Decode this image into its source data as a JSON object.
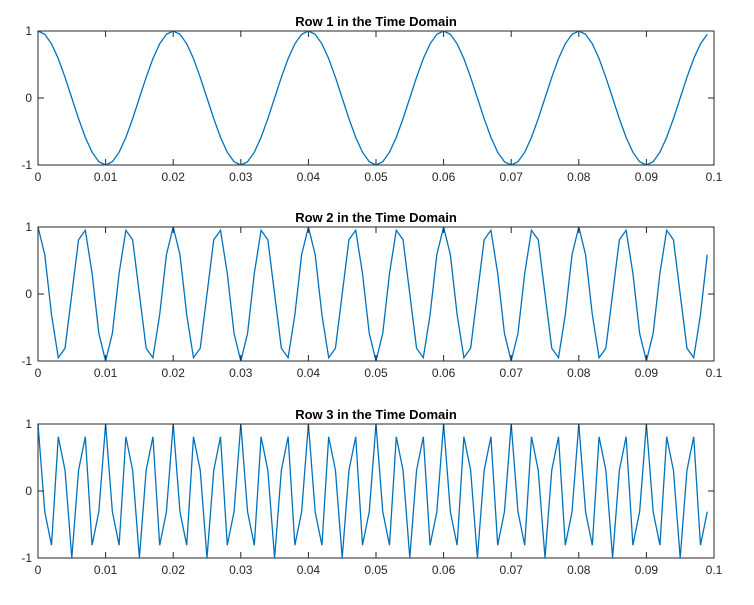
{
  "chart_data": [
    {
      "type": "line",
      "title": "Row 1 in the Time Domain",
      "xlim": [
        0,
        0.1
      ],
      "ylim": [
        -1,
        1
      ],
      "xticks": [
        0,
        0.01,
        0.02,
        0.03,
        0.04,
        0.05,
        0.06,
        0.07,
        0.08,
        0.09,
        0.1
      ],
      "xtick_labels": [
        "0",
        "0.01",
        "0.02",
        "0.03",
        "0.04",
        "0.05",
        "0.06",
        "0.07",
        "0.08",
        "0.09",
        "0.1"
      ],
      "yticks": [
        -1,
        0,
        1
      ],
      "ytick_labels": [
        "-1",
        "0",
        "1"
      ],
      "grid": false,
      "series": [
        {
          "color": "#0072BD",
          "function": "cos(2*pi*50*t)",
          "frequency_hz": 50,
          "sample_rate_hz": 1000,
          "t_start": 0,
          "t_end": 0.099
        }
      ]
    },
    {
      "type": "line",
      "title": "Row 2 in the Time Domain",
      "xlim": [
        0,
        0.1
      ],
      "ylim": [
        -1,
        1
      ],
      "xticks": [
        0,
        0.01,
        0.02,
        0.03,
        0.04,
        0.05,
        0.06,
        0.07,
        0.08,
        0.09,
        0.1
      ],
      "xtick_labels": [
        "0",
        "0.01",
        "0.02",
        "0.03",
        "0.04",
        "0.05",
        "0.06",
        "0.07",
        "0.08",
        "0.09",
        "0.1"
      ],
      "yticks": [
        -1,
        0,
        1
      ],
      "ytick_labels": [
        "-1",
        "0",
        "1"
      ],
      "grid": false,
      "series": [
        {
          "color": "#0072BD",
          "function": "cos(2*pi*150*t)",
          "frequency_hz": 150,
          "sample_rate_hz": 1000,
          "t_start": 0,
          "t_end": 0.099
        }
      ]
    },
    {
      "type": "line",
      "title": "Row 3 in the Time Domain",
      "xlim": [
        0,
        0.1
      ],
      "ylim": [
        -1,
        1
      ],
      "xticks": [
        0,
        0.01,
        0.02,
        0.03,
        0.04,
        0.05,
        0.06,
        0.07,
        0.08,
        0.09,
        0.1
      ],
      "xtick_labels": [
        "0",
        "0.01",
        "0.02",
        "0.03",
        "0.04",
        "0.05",
        "0.06",
        "0.07",
        "0.08",
        "0.09",
        "0.1"
      ],
      "yticks": [
        -1,
        0,
        1
      ],
      "ytick_labels": [
        "-1",
        "0",
        "1"
      ],
      "grid": false,
      "series": [
        {
          "color": "#0072BD",
          "function": "cos(2*pi*300*t)",
          "frequency_hz": 300,
          "sample_rate_hz": 1000,
          "t_start": 0,
          "t_end": 0.099
        }
      ]
    }
  ]
}
